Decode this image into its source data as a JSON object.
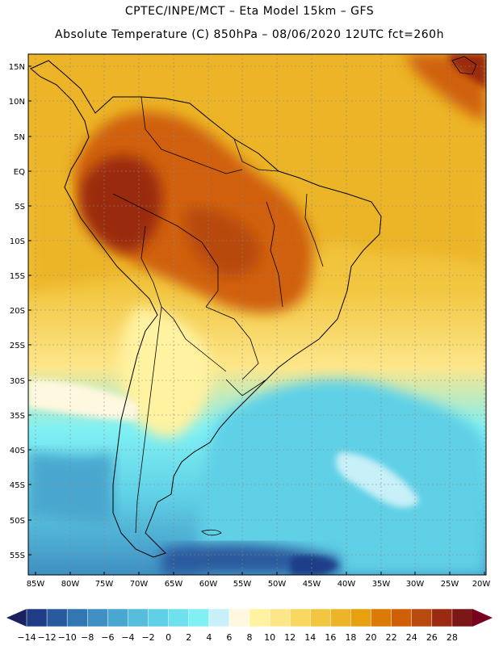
{
  "header": {
    "line1": "CPTEC/INPE/MCT –  Eta Model 15km – GFS",
    "line2": "Absolute Temperature (C) 850hPa – 08/06/2020 12UTC fct=260h"
  },
  "map": {
    "lat_labels": [
      "15N",
      "10N",
      "5N",
      "EQ",
      "5S",
      "10S",
      "15S",
      "20S",
      "25S",
      "30S",
      "35S",
      "40S",
      "45S",
      "50S",
      "55S"
    ],
    "lon_labels": [
      "85W",
      "80W",
      "75W",
      "70W",
      "65W",
      "60W",
      "55W",
      "50W",
      "45W",
      "40W",
      "35W",
      "30W",
      "25W",
      "20W"
    ],
    "colors": {
      "ocean_cold": "#5ad0e4",
      "tropics_warm": "#e0a020",
      "hot_core": "#c05010",
      "grid": "#888888"
    }
  },
  "colorbar": {
    "labels": [
      "-14",
      "-12",
      "-10",
      "-8",
      "-6",
      "-4",
      "-2",
      "0",
      "2",
      "4",
      "6",
      "8",
      "10",
      "12",
      "14",
      "16",
      "18",
      "20",
      "22",
      "24",
      "26",
      "28"
    ],
    "colors": [
      "#1f3d87",
      "#2a5a9e",
      "#3377b2",
      "#3f8fc2",
      "#4aa7cf",
      "#56bedc",
      "#5fd0e6",
      "#6fe0ee",
      "#80f0f4",
      "#c8f0f8",
      "#fff8e0",
      "#fff2a0",
      "#fde68a",
      "#f8d860",
      "#f2c640",
      "#ecb428",
      "#e6a010",
      "#dc7a08",
      "#d06008",
      "#b84a10",
      "#9a2a10",
      "#7a1818"
    ],
    "under_color": "#1a2060",
    "over_color": "#7a0020"
  }
}
